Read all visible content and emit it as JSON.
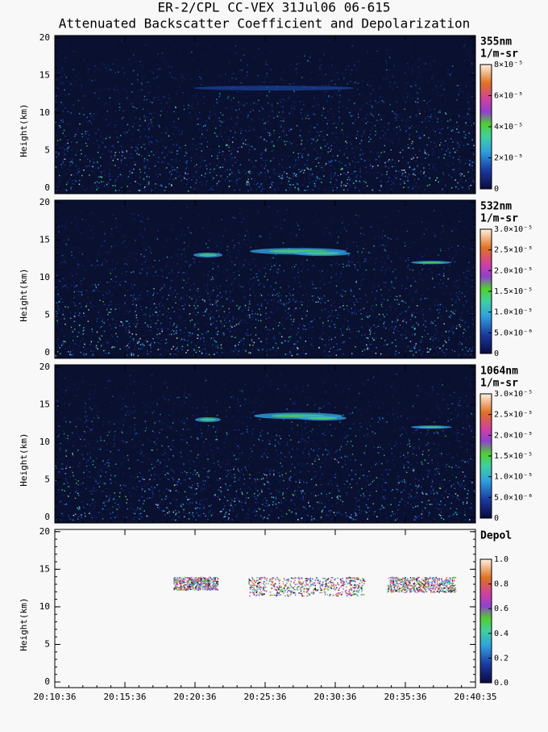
{
  "chart_data": [
    {
      "type": "heatmap",
      "title": "ER-2/CPL CC-VEX 31Jul06 06-615",
      "subtitle": "Attenuated Backscatter Coefficient and Depolarization",
      "ylabel": "Height(km)",
      "ylim": [
        -0.75,
        20.3
      ],
      "yticks": [
        0,
        5,
        10,
        15,
        20
      ],
      "colorbar_label": "355nm",
      "colorbar_units": "1/m-sr",
      "clim": [
        0,
        8e-05
      ],
      "cticks": [
        0,
        {
          "value": 2e-05,
          "label": "2×10⁻⁵"
        },
        {
          "value": 4e-05,
          "label": "4×10⁻⁵"
        },
        {
          "value": 6e-05,
          "label": "6×10⁻⁵"
        },
        {
          "value": 8e-05,
          "label": "8×10⁻⁵"
        }
      ]
    },
    {
      "type": "heatmap",
      "ylabel": "Height(km)",
      "ylim": [
        -0.75,
        20.3
      ],
      "yticks": [
        0,
        5,
        10,
        15,
        20
      ],
      "colorbar_label": "532nm",
      "colorbar_units": "1/m-sr",
      "clim": [
        0,
        3e-05
      ],
      "cticks": [
        0,
        {
          "value": 5e-06,
          "label": "5.0×10⁻⁶"
        },
        {
          "value": 1e-05,
          "label": "1.0×10⁻⁵"
        },
        {
          "value": 1.5e-05,
          "label": "1.5×10⁻⁵"
        },
        {
          "value": 2e-05,
          "label": "2.0×10⁻⁵"
        },
        {
          "value": 2.5e-05,
          "label": "2.5×10⁻⁵"
        },
        {
          "value": 3e-05,
          "label": "3.0×10⁻⁵"
        }
      ]
    },
    {
      "type": "heatmap",
      "ylabel": "Height(km)",
      "ylim": [
        -0.75,
        20.3
      ],
      "yticks": [
        0,
        5,
        10,
        15,
        20
      ],
      "colorbar_label": "1064nm",
      "colorbar_units": "1/m-sr",
      "clim": [
        0,
        3e-05
      ],
      "cticks": [
        0,
        {
          "value": 5e-06,
          "label": "5.0×10⁻⁶"
        },
        {
          "value": 1e-05,
          "label": "1.0×10⁻⁵"
        },
        {
          "value": 1.5e-05,
          "label": "1.5×10⁻⁵"
        },
        {
          "value": 2e-05,
          "label": "2.0×10⁻⁵"
        },
        {
          "value": 2.5e-05,
          "label": "2.5×10⁻⁵"
        },
        {
          "value": 3e-05,
          "label": "3.0×10⁻⁵"
        }
      ]
    },
    {
      "type": "heatmap",
      "ylabel": "Height(km)",
      "ylim": [
        -0.75,
        20.3
      ],
      "yticks": [
        0,
        5,
        10,
        15,
        20
      ],
      "colorbar_label": "Depol",
      "clim": [
        0,
        1
      ],
      "cticks": [
        {
          "value": 0,
          "label": "0.0"
        },
        0.2,
        0.4,
        0.6,
        0.8,
        {
          "value": 1,
          "label": "1.0"
        }
      ],
      "xticks": [
        "20:10:36",
        "20:15:36",
        "20:20:36",
        "20:25:36",
        "20:30:36",
        "20:35:36",
        "20:40:35"
      ]
    }
  ]
}
